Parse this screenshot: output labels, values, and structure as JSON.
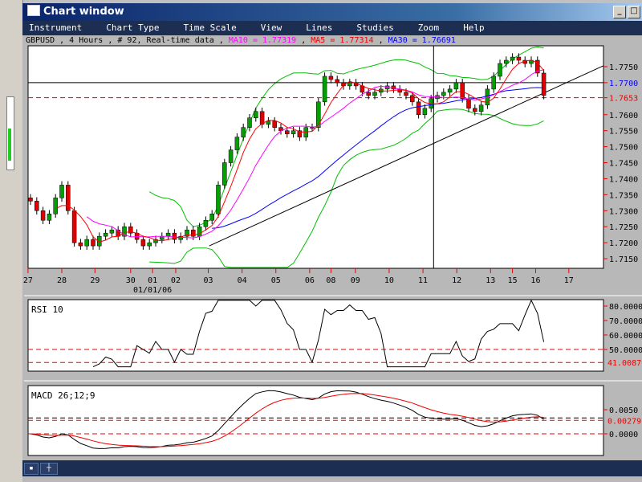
{
  "window": {
    "title": "Chart window"
  },
  "menu": [
    "Instrument",
    "Chart Type",
    "Time Scale",
    "View",
    "Lines",
    "Studies",
    "Zoom",
    "Help"
  ],
  "info": {
    "prefix": "GBPUSD , 4 Hours , # 92, Real-time data ,",
    "ma10": "MA10 = 1.77319",
    "ma5": "MA5 = 1.77314",
    "ma30": "MA30 = 1.76691",
    "sep": ","
  },
  "colors": {
    "ma10": "#ff00ff",
    "ma5": "#ff0000",
    "ma30": "#0000ff",
    "bollinger": "#00c000",
    "up": "#00a000",
    "down": "#e00000"
  },
  "chart_data": [
    {
      "type": "candlestick",
      "title": "GBPUSD 4 Hours",
      "closes": [
        1.733,
        1.73,
        1.727,
        1.729,
        1.734,
        1.738,
        1.73,
        1.72,
        1.719,
        1.721,
        1.719,
        1.722,
        1.723,
        1.724,
        1.722,
        1.725,
        1.723,
        1.721,
        1.719,
        1.72,
        1.721,
        1.722,
        1.723,
        1.721,
        1.722,
        1.724,
        1.722,
        1.725,
        1.727,
        1.729,
        1.738,
        1.745,
        1.749,
        1.753,
        1.756,
        1.759,
        1.761,
        1.757,
        1.758,
        1.756,
        1.755,
        1.754,
        1.755,
        1.753,
        1.756,
        1.756,
        1.764,
        1.772,
        1.771,
        1.77,
        1.769,
        1.77,
        1.769,
        1.767,
        1.766,
        1.767,
        1.768,
        1.769,
        1.768,
        1.767,
        1.766,
        1.764,
        1.76,
        1.762,
        1.765,
        1.766,
        1.767,
        1.768,
        1.77,
        1.765,
        1.762,
        1.761,
        1.763,
        1.768,
        1.772,
        1.776,
        1.777,
        1.778,
        1.777,
        1.776,
        1.777,
        1.773,
        1.766
      ],
      "ylim": [
        1.7125,
        1.7815
      ],
      "yticks": [
        "1.7750",
        "1.7700",
        "1.7653",
        "1.7600",
        "1.7550",
        "1.7500",
        "1.7450",
        "1.7400",
        "1.7350",
        "1.7300",
        "1.7250",
        "1.7200",
        "1.7150"
      ],
      "highlight": {
        "blue": "1.7700",
        "red": "1.7653"
      },
      "xticks": [
        "27",
        "28",
        "29",
        "30",
        "01",
        "02",
        "03",
        "04",
        "05",
        "06",
        "08",
        "09",
        "10",
        "11",
        "12",
        "13",
        "15",
        "16",
        "17"
      ],
      "xtick_index": [
        -0.4,
        5,
        10.3,
        16,
        19.5,
        23.2,
        28.4,
        33.8,
        39.2,
        44.6,
        48,
        51.9,
        57.3,
        62.7,
        68.1,
        73.5,
        77,
        80.7,
        86
      ],
      "date_label": "01/01/06",
      "hlines": [
        1.77,
        1.7653
      ],
      "trendline": [
        [
          26,
          1.719
        ],
        [
          92,
          1.778
        ]
      ],
      "crosshair_index": 64.4
    },
    {
      "type": "line",
      "title": "RSI 10",
      "yticks": [
        "80.0000",
        "70.0000",
        "60.0000",
        "50.0000"
      ],
      "current": "41.00879",
      "levels": [
        50,
        41
      ],
      "ylim": [
        38,
        85
      ]
    },
    {
      "type": "line",
      "title": "MACD 26;12;9",
      "yticks": [
        "0.0050",
        "0.0000"
      ],
      "current": "0.00279",
      "levels": [
        0.00279,
        0
      ]
    }
  ]
}
